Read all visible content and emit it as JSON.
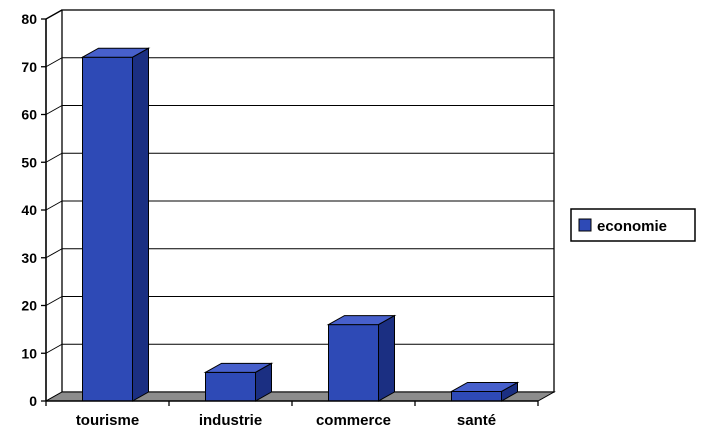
{
  "chart_data": {
    "type": "bar",
    "categories": [
      "tourisme",
      "industrie",
      "commerce",
      "santé"
    ],
    "series": [
      {
        "name": "economie",
        "values": [
          72,
          6,
          16,
          2
        ]
      }
    ],
    "ylim": [
      0,
      80
    ],
    "yticks": [
      0,
      10,
      20,
      30,
      40,
      50,
      60,
      70,
      80
    ],
    "grid": true,
    "legend_position": "right",
    "bar_style": "3d",
    "colors": {
      "bar_front": "#2e4ab6",
      "bar_top": "#4760cc",
      "bar_side": "#1b2f82",
      "floor": "#8c8c8c",
      "axis": "#000000",
      "grid": "#000000"
    }
  }
}
